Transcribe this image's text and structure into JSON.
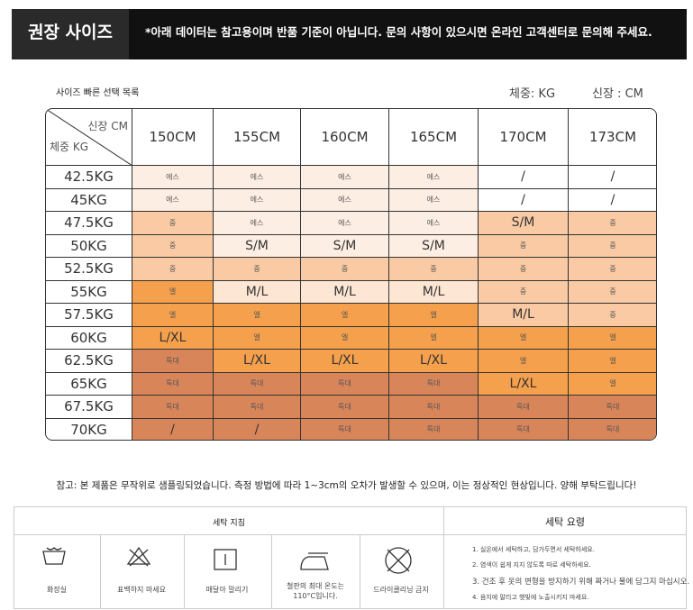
{
  "header": {
    "title": "권장 사이즈",
    "notice": "*아래 데이터는 참고용이며 반품 기준이 아닙니다. 문의 사항이 있으시면 온라인 고객센터로 문의해 주세요."
  },
  "table": {
    "caption": "사이즈 빠른 선택 목록",
    "weight_unit": "체중: KG",
    "height_unit": "신장 : CM",
    "corner_top": "신장 CM",
    "corner_bottom": "체중 KG",
    "columns": [
      "150CM",
      "155CM",
      "160CM",
      "165CM",
      "170CM",
      "173CM"
    ],
    "rows": [
      {
        "weight": "42.5KG",
        "cells": [
          "에스",
          "에스",
          "에스",
          "에스",
          "/",
          "/"
        ],
        "colors": [
          "#fdeee3",
          "#fdeee3",
          "#fdeee3",
          "#fdeee3",
          "#ffffff",
          "#ffffff"
        ]
      },
      {
        "weight": "45KG",
        "cells": [
          "에스",
          "에스",
          "에스",
          "에스",
          "/",
          "/"
        ],
        "colors": [
          "#fdeee3",
          "#fdeee3",
          "#fdeee3",
          "#fdeee3",
          "#ffffff",
          "#ffffff"
        ]
      },
      {
        "weight": "47.5KG",
        "cells": [
          "중",
          "에스",
          "에스",
          "에스",
          "S/M",
          "중"
        ],
        "colors": [
          "#f9caa3",
          "#fdeee3",
          "#fdeee3",
          "#fdeee3",
          "#f9caa3",
          "#f9caa3"
        ]
      },
      {
        "weight": "50KG",
        "cells": [
          "중",
          "S/M",
          "S/M",
          "S/M",
          "중",
          "중"
        ],
        "colors": [
          "#f9caa3",
          "#fdeee3",
          "#fdeee3",
          "#fdeee3",
          "#f9caa3",
          "#f9caa3"
        ]
      },
      {
        "weight": "52.5KG",
        "cells": [
          "중",
          "중",
          "중",
          "중",
          "중",
          "중"
        ],
        "colors": [
          "#f9caa3",
          "#f9caa3",
          "#f9caa3",
          "#f9caa3",
          "#f9caa3",
          "#f9caa3"
        ]
      },
      {
        "weight": "55KG",
        "cells": [
          "엘",
          "M/L",
          "M/L",
          "M/L",
          "중",
          "중"
        ],
        "colors": [
          "#f4a04c",
          "#fde6d3",
          "#fde6d3",
          "#fde6d3",
          "#f9caa3",
          "#f9caa3"
        ]
      },
      {
        "weight": "57.5KG",
        "cells": [
          "엘",
          "엘",
          "엘",
          "엘",
          "M/L",
          "중"
        ],
        "colors": [
          "#f4a04c",
          "#f4a04c",
          "#f4a04c",
          "#f4a04c",
          "#f9caa3",
          "#f9caa3"
        ]
      },
      {
        "weight": "60KG",
        "cells": [
          "L/XL",
          "엘",
          "엘",
          "엘",
          "엘",
          "엘"
        ],
        "colors": [
          "#f4a04c",
          "#f4a04c",
          "#f4a04c",
          "#f4a04c",
          "#f4a04c",
          "#f4a04c"
        ]
      },
      {
        "weight": "62.5KG",
        "cells": [
          "특대",
          "L/XL",
          "L/XL",
          "L/XL",
          "엘",
          "엘"
        ],
        "colors": [
          "#d9855a",
          "#f4a04c",
          "#f4a04c",
          "#f4a04c",
          "#f4a04c",
          "#f4a04c"
        ]
      },
      {
        "weight": "65KG",
        "cells": [
          "특대",
          "특대",
          "특대",
          "특대",
          "L/XL",
          "엘"
        ],
        "colors": [
          "#d9855a",
          "#d9855a",
          "#d9855a",
          "#d9855a",
          "#f4a04c",
          "#f4a04c"
        ]
      },
      {
        "weight": "67.5KG",
        "cells": [
          "특대",
          "특대",
          "특대",
          "특대",
          "특대",
          "특대"
        ],
        "colors": [
          "#d9855a",
          "#d9855a",
          "#d9855a",
          "#d9855a",
          "#d9855a",
          "#d9855a"
        ]
      },
      {
        "weight": "70KG",
        "cells": [
          "/",
          "/",
          "특대",
          "특대",
          "특대",
          "특대"
        ],
        "colors": [
          "#d9855a",
          "#d9855a",
          "#d9855a",
          "#d9855a",
          "#d9855a",
          "#d9855a"
        ]
      }
    ]
  },
  "note": "참고: 본 제품은 무작위로 샘플링되었습니다. 측정 방법에 따라 1~3cm의 오차가 발생할 수 있으며, 이는 정상적인 현상입니다. 양해 부탁드립니다!",
  "care": {
    "title": "세탁 지침",
    "icons": [
      "화장실",
      "표백하지 마세요",
      "매달아 말리기",
      "철판의 최대 온도는 110°C입니다.",
      "드라이클리닝 금지"
    ],
    "tips_title": "세탁 요령",
    "tips": [
      "1. 실온에서 세탁하고, 담가두면서 세탁하세요.",
      "2. 염색이 쉽게 지지 않도록 따로 세탁하세요.",
      "3. 건조 후 옷의 변형을 방지하기 위해 짜거나 물에 담그지 마십시오.",
      "4. 음지에 말리고 햇빛에 노출시키지 마세요."
    ]
  }
}
